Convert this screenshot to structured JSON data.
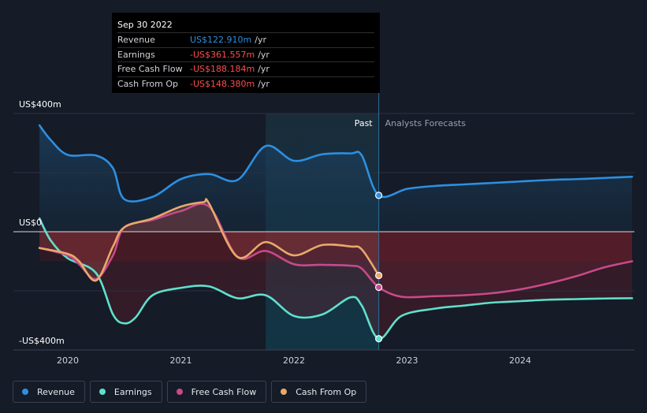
{
  "tooltip": {
    "date": "Sep 30 2022",
    "rows": [
      {
        "label": "Revenue",
        "value": "US$122.910m",
        "unit": "/yr",
        "color": "#2d8fe0"
      },
      {
        "label": "Earnings",
        "value": "-US$361.557m",
        "unit": "/yr",
        "color": "#ff4d4d"
      },
      {
        "label": "Free Cash Flow",
        "value": "-US$188.184m",
        "unit": "/yr",
        "color": "#ff4d4d"
      },
      {
        "label": "Cash From Op",
        "value": "-US$148.380m",
        "unit": "/yr",
        "color": "#ff4d4d"
      }
    ]
  },
  "legend": [
    {
      "label": "Revenue",
      "color": "#2d8fe0"
    },
    {
      "label": "Earnings",
      "color": "#5fe0cc"
    },
    {
      "label": "Free Cash Flow",
      "color": "#c84a8a"
    },
    {
      "label": "Cash From Op",
      "color": "#e8a96a"
    }
  ],
  "chart_data": {
    "type": "line",
    "title": "",
    "xlabel": "",
    "ylabel": "",
    "y_unit": "US$m",
    "xlim": [
      2019.7,
      2024.99
    ],
    "ylim": [
      -400,
      400
    ],
    "y_tick_labels": [
      {
        "value": 400,
        "label": "US$400m"
      },
      {
        "value": 0,
        "label": "US$0"
      },
      {
        "value": -400,
        "label": "-US$400m"
      }
    ],
    "x_ticks": [
      2020,
      2021,
      2022,
      2023,
      2024
    ],
    "x_tick_labels": [
      "2020",
      "2021",
      "2022",
      "2023",
      "2024"
    ],
    "past_label": "Past",
    "forecast_label": "Analysts Forecasts",
    "past_end": 2022.75,
    "highlight_start": 2021.75,
    "series": [
      {
        "name": "Revenue",
        "color": "#2d8fe0",
        "x": [
          2019.75,
          2019.85,
          2020.0,
          2020.25,
          2020.4,
          2020.5,
          2020.75,
          2021.0,
          2021.25,
          2021.5,
          2021.75,
          2022.0,
          2022.25,
          2022.5,
          2022.6,
          2022.75,
          2023.0,
          2023.25,
          2023.5,
          2023.75,
          2024.0,
          2024.25,
          2024.5,
          2024.75,
          2024.99
        ],
        "values": [
          360,
          310,
          260,
          258,
          215,
          110,
          118,
          178,
          195,
          175,
          290,
          240,
          262,
          265,
          258,
          123,
          145,
          155,
          160,
          165,
          170,
          175,
          178,
          182,
          186
        ]
      },
      {
        "name": "Earnings",
        "color": "#5fe0cc",
        "x": [
          2019.75,
          2019.85,
          2020.0,
          2020.25,
          2020.4,
          2020.5,
          2020.6,
          2020.75,
          2021.0,
          2021.25,
          2021.5,
          2021.75,
          2022.0,
          2022.25,
          2022.5,
          2022.6,
          2022.75,
          2022.95,
          2023.25,
          2023.5,
          2023.75,
          2024.0,
          2024.25,
          2024.5,
          2024.75,
          2024.99
        ],
        "values": [
          45,
          -30,
          -90,
          -140,
          -280,
          -310,
          -290,
          -215,
          -190,
          -185,
          -225,
          -215,
          -285,
          -280,
          -222,
          -250,
          -362,
          -285,
          -260,
          -250,
          -240,
          -235,
          -230,
          -228,
          -226,
          -225
        ]
      },
      {
        "name": "Free Cash Flow",
        "color": "#c84a8a",
        "x": [
          2019.75,
          2020.0,
          2020.1,
          2020.25,
          2020.4,
          2020.5,
          2020.75,
          2021.0,
          2021.25,
          2021.5,
          2021.75,
          2022.0,
          2022.25,
          2022.5,
          2022.6,
          2022.75,
          2022.95,
          2023.25,
          2023.5,
          2023.75,
          2024.0,
          2024.25,
          2024.5,
          2024.75,
          2024.99
        ],
        "values": [
          -55,
          -80,
          -110,
          -160,
          -80,
          15,
          40,
          70,
          85,
          -85,
          -65,
          -110,
          -112,
          -115,
          -125,
          -188,
          -220,
          -218,
          -215,
          -208,
          -195,
          -175,
          -150,
          -120,
          -100
        ]
      },
      {
        "name": "Cash From Op",
        "color": "#e8a96a",
        "x": [
          2019.75,
          2020.0,
          2020.1,
          2020.25,
          2020.4,
          2020.5,
          2020.75,
          2021.0,
          2021.2,
          2021.25,
          2021.5,
          2021.75,
          2022.0,
          2022.25,
          2022.5,
          2022.6,
          2022.75
        ],
        "values": [
          -55,
          -75,
          -100,
          -165,
          -50,
          15,
          45,
          85,
          100,
          95,
          -85,
          -35,
          -80,
          -45,
          -50,
          -60,
          -148
        ]
      }
    ],
    "markers": [
      {
        "series": "Revenue",
        "x": 2022.75,
        "value": 123
      },
      {
        "series": "Cash From Op",
        "x": 2022.75,
        "value": -148
      },
      {
        "series": "Free Cash Flow",
        "x": 2022.75,
        "value": -188
      },
      {
        "series": "Earnings",
        "x": 2022.75,
        "value": -362
      }
    ]
  }
}
